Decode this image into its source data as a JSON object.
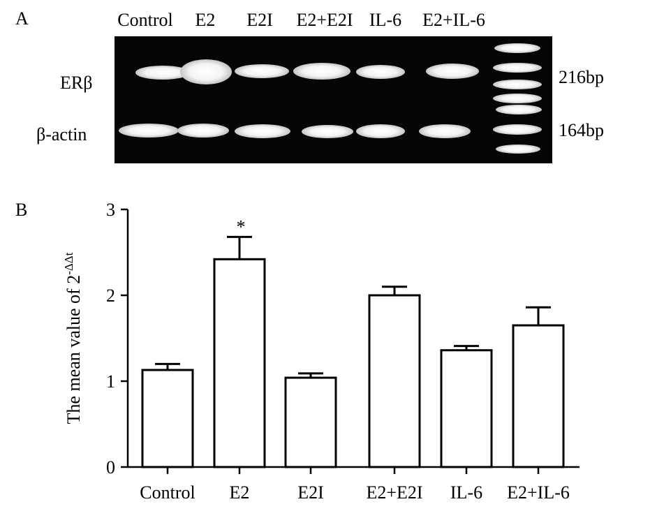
{
  "panel_a": {
    "letter": "A",
    "lanes": [
      "Control",
      "E2",
      "E2I",
      "E2+E2I",
      "IL-6",
      "E2+IL-6"
    ],
    "row_labels": [
      "ERβ",
      "β-actin"
    ],
    "bp_labels": [
      "216bp",
      "164bp"
    ]
  },
  "panel_b": {
    "letter": "B"
  },
  "chart_data": {
    "type": "bar",
    "categories": [
      "Control",
      "E2",
      "E2I",
      "E2+E2I",
      "IL-6",
      "E2+IL-6"
    ],
    "values": [
      1.13,
      2.42,
      1.04,
      2.0,
      1.36,
      1.65
    ],
    "errors": [
      0.07,
      0.26,
      0.05,
      0.1,
      0.05,
      0.21
    ],
    "annotations": [
      {
        "category": "E2",
        "text": "*"
      }
    ],
    "ylabel": "The mean value of 2",
    "ylabel_superscript": "-ΔΔt",
    "ylim": [
      0,
      3
    ],
    "yticks": [
      0,
      1,
      2,
      3
    ],
    "bar_fill": "#ffffff",
    "bar_stroke": "#000000"
  }
}
